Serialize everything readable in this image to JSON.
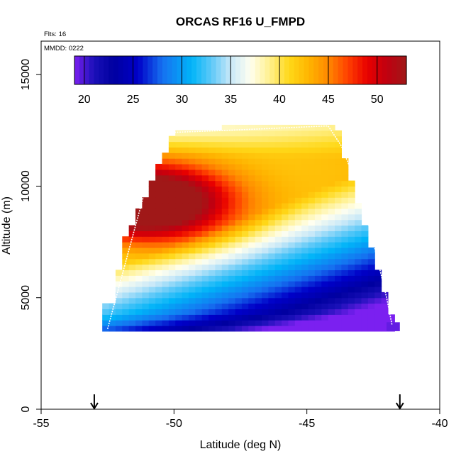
{
  "header": {
    "flights_label": "Flts: 16",
    "mmdd_label": "MMDD: 0222"
  },
  "chart_data": {
    "type": "heatmap",
    "title": "ORCAS RF16 U_FMPD",
    "xlabel": "Latitude (deg N)",
    "ylabel": "Altitude (m)",
    "xlim": [
      -55,
      -40
    ],
    "ylim": [
      0,
      16500
    ],
    "x_ticks": [
      -55,
      -50,
      -45,
      -40
    ],
    "y_ticks": [
      0,
      5000,
      10000,
      15000
    ],
    "colorbar": {
      "range": [
        19,
        53
      ],
      "ticks": [
        20,
        25,
        30,
        35,
        40,
        45,
        50
      ],
      "stops": [
        {
          "v": 19,
          "color": "#7b20f0"
        },
        {
          "v": 21,
          "color": "#1a10b8"
        },
        {
          "v": 23,
          "color": "#0000a0"
        },
        {
          "v": 25.5,
          "color": "#0000c8"
        },
        {
          "v": 28,
          "color": "#1670f0"
        },
        {
          "v": 31,
          "color": "#00b4f8"
        },
        {
          "v": 33,
          "color": "#5cc8f8"
        },
        {
          "v": 35,
          "color": "#c8e8f8"
        },
        {
          "v": 37,
          "color": "#fffff0"
        },
        {
          "v": 39,
          "color": "#fff08c"
        },
        {
          "v": 41,
          "color": "#ffd818"
        },
        {
          "v": 43,
          "color": "#ffb400"
        },
        {
          "v": 45,
          "color": "#ff8800"
        },
        {
          "v": 47,
          "color": "#ff4000"
        },
        {
          "v": 49,
          "color": "#e80000"
        },
        {
          "v": 51,
          "color": "#c00010"
        },
        {
          "v": 53,
          "color": "#a01818"
        }
      ]
    },
    "field": {
      "description": "Zonal wind U (m/s) cross-section",
      "lat_min": -52.7,
      "lat_max": -41.4,
      "alt_min": 3500,
      "alt_max": 12700,
      "lat_step": 0.25,
      "alt_step": 250
    },
    "flight_path": [
      {
        "lat": -52.5,
        "alt": 3600
      },
      {
        "lat": -52.0,
        "alt": 5800
      },
      {
        "lat": -51.5,
        "alt": 8000
      },
      {
        "lat": -51.0,
        "alt": 10200
      },
      {
        "lat": -50.5,
        "alt": 11900
      },
      {
        "lat": -50.3,
        "alt": 12400
      },
      {
        "lat": -48.0,
        "alt": 12500
      },
      {
        "lat": -44.2,
        "alt": 12700
      },
      {
        "lat": -43.7,
        "alt": 11800
      },
      {
        "lat": -43.0,
        "alt": 9700
      },
      {
        "lat": -42.4,
        "alt": 7000
      },
      {
        "lat": -42.0,
        "alt": 5000
      },
      {
        "lat": -41.8,
        "alt": 3800
      }
    ],
    "markers": [
      {
        "lat": -53.0,
        "symbol": "down-arrow"
      },
      {
        "lat": -41.5,
        "symbol": "down-arrow"
      }
    ]
  }
}
